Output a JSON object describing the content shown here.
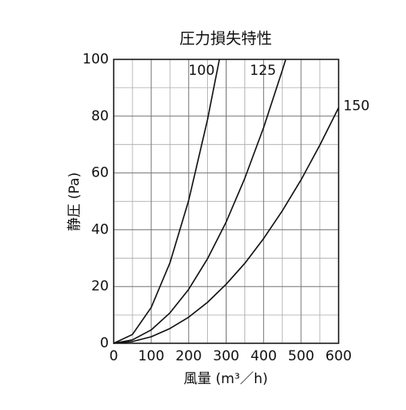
{
  "chart_data": {
    "type": "line",
    "title": "圧力損失特性",
    "x_label": "風量 (m³／h)",
    "y_label": "静圧 (Pa)",
    "xlim": [
      0,
      600
    ],
    "ylim": [
      0,
      100
    ],
    "xticks": [
      0,
      100,
      200,
      300,
      400,
      500,
      600
    ],
    "yticks": [
      0,
      20,
      40,
      60,
      80,
      100
    ],
    "x_minor_grid": [
      50,
      150,
      250,
      350,
      450,
      550
    ],
    "y_minor_grid": [
      10,
      30,
      50,
      70,
      90
    ],
    "grid": true,
    "series": [
      {
        "name": "100",
        "color": "#111111",
        "x": [
          0,
          50,
          100,
          150,
          200,
          250,
          282
        ],
        "values": [
          0,
          3.1,
          12.6,
          28.3,
          50.3,
          78.6,
          100
        ]
      },
      {
        "name": "125",
        "color": "#111111",
        "x": [
          0,
          50,
          100,
          150,
          200,
          250,
          300,
          350,
          400,
          450,
          459
        ],
        "values": [
          0,
          1.2,
          4.7,
          10.7,
          19.0,
          29.7,
          42.7,
          58.2,
          76.0,
          96.2,
          100
        ]
      },
      {
        "name": "150",
        "color": "#111111",
        "x": [
          0,
          50,
          100,
          150,
          200,
          250,
          300,
          350,
          400,
          450,
          500,
          550,
          600
        ],
        "values": [
          0,
          0.6,
          2.3,
          5.2,
          9.2,
          14.4,
          20.8,
          28.2,
          36.9,
          46.7,
          57.6,
          69.8,
          83
        ]
      }
    ]
  }
}
